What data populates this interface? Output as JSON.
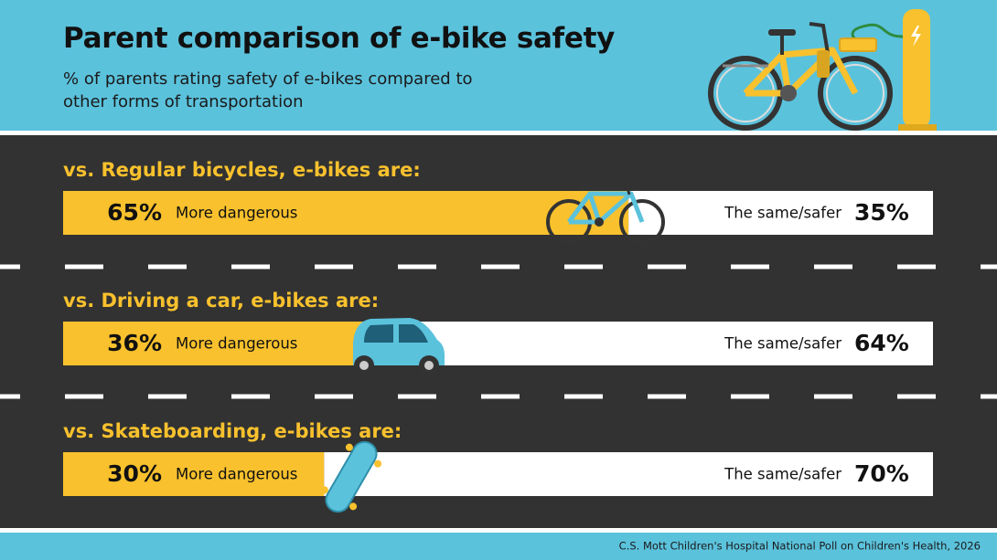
{
  "chart_data": {
    "type": "bar",
    "orientation": "horizontal",
    "stacked": true,
    "title": "Parent comparison of e-bike safety",
    "subtitle": "% of parents rating safety of e-bikes compared to other forms of transportation",
    "source": "C.S. Mott Children's Hospital National Poll on Children's Health, 2026",
    "categories": [
      "vs. Regular bicycles, e-bikes are:",
      "vs. Driving a car, e-bikes are:",
      "vs. Skateboarding, e-bikes are:"
    ],
    "series": [
      {
        "name": "More dangerous",
        "color": "#f8c12d",
        "values": [
          65,
          36,
          30
        ],
        "value_labels": [
          "65%",
          "36%",
          "30%"
        ]
      },
      {
        "name": "The same/safer",
        "color": "#ffffff",
        "values": [
          35,
          64,
          70
        ],
        "value_labels": [
          "35%",
          "64%",
          "70%"
        ]
      }
    ],
    "xlim": [
      0,
      100
    ]
  }
}
